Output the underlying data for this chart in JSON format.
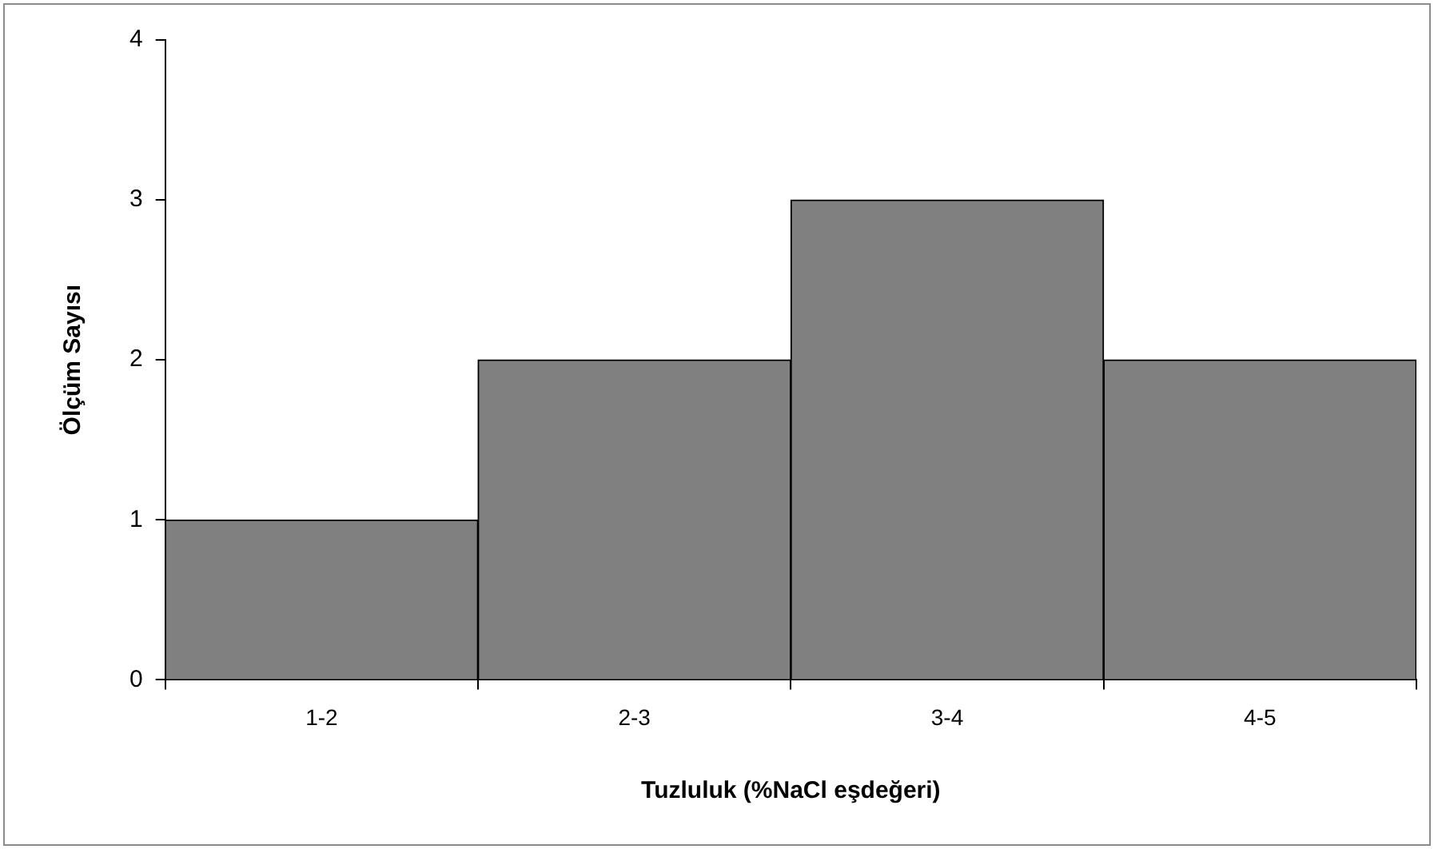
{
  "chart_data": {
    "type": "bar",
    "xlabel": "Tuzluluk (%NaCl eşdeğeri)",
    "ylabel": "Ölçüm Sayısı",
    "categories": [
      "1-2",
      "2-3",
      "3-4",
      "4-5"
    ],
    "values": [
      1,
      2,
      3,
      2
    ],
    "color": "#808080",
    "ylim": [
      0,
      4
    ],
    "yticks": [
      0,
      1,
      2,
      3,
      4
    ],
    "grid": false,
    "legend": false
  }
}
